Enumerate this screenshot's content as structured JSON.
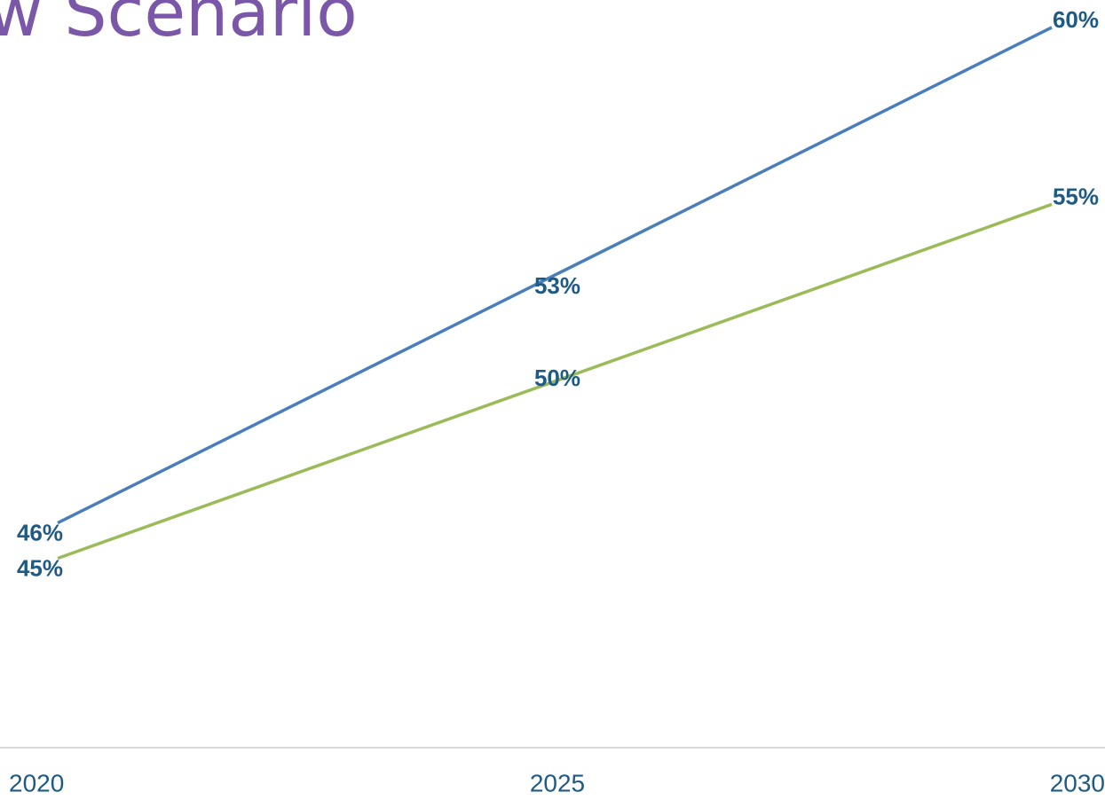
{
  "chart_data": {
    "type": "line",
    "title": "w Scenario",
    "categories": [
      "2020",
      "2025",
      "2030"
    ],
    "series": [
      {
        "color": "#4a7ebb",
        "values": [
          46,
          53,
          60
        ],
        "value_labels": [
          "46%",
          "53%",
          "60%"
        ]
      },
      {
        "color": "#9bbb59",
        "values": [
          45,
          50,
          55
        ],
        "value_labels": [
          "45%",
          "50%",
          "55%"
        ]
      }
    ],
    "ylim": [
      40,
      61
    ]
  }
}
